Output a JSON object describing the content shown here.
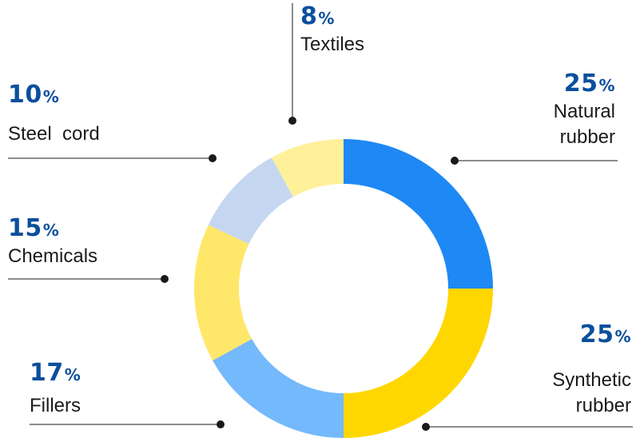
{
  "chart_data": {
    "type": "pie",
    "subtype": "donut",
    "slices": [
      {
        "value": 25,
        "color": "#1e88f5",
        "pct_text": "25",
        "label_lines": [
          "Natural",
          "rubber"
        ]
      },
      {
        "value": 25,
        "color": "#ffd700",
        "pct_text": "25",
        "label_lines": [
          "Synthetic",
          "rubber"
        ]
      },
      {
        "value": 17,
        "color": "#74b9fb",
        "pct_text": "17",
        "label_lines": [
          "Fillers"
        ]
      },
      {
        "value": 15,
        "color": "#ffe76a",
        "pct_text": "15",
        "label_lines": [
          "Chemicals"
        ]
      },
      {
        "value": 10,
        "color": "#c5d7f0",
        "pct_text": "10",
        "label_lines": [
          "Steel  cord"
        ]
      },
      {
        "value": 8,
        "color": "#fff09a",
        "pct_text": "8",
        "label_lines": [
          "Textiles"
        ]
      }
    ],
    "percent_sign": "%",
    "start": "12 o'clock",
    "direction": "clockwise",
    "percent_color": "#0b4f9c",
    "leader_color": "#1a1a1a"
  }
}
